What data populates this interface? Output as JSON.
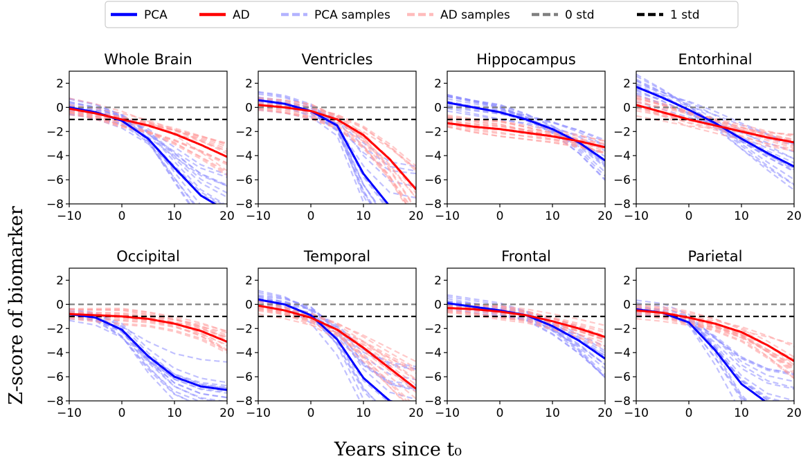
{
  "figure": {
    "ylabel": "Z-score of biomarker",
    "xlabel": "Years since t₀"
  },
  "legend": {
    "placement": "top-center",
    "entries": [
      {
        "label": "PCA",
        "color": "#0000ff",
        "style": "solid"
      },
      {
        "label": "AD",
        "color": "#ff0000",
        "style": "solid"
      },
      {
        "label": "PCA samples",
        "color": "#b3b3ff",
        "style": "dashed"
      },
      {
        "label": "AD samples",
        "color": "#ffbcbc",
        "style": "dashed"
      },
      {
        "label": "0 std",
        "color": "#808080",
        "style": "dashed"
      },
      {
        "label": "1 std",
        "color": "#000000",
        "style": "dashed"
      }
    ]
  },
  "chart_data": [
    {
      "type": "line",
      "title": "Whole Brain",
      "xlim": [
        -10,
        20
      ],
      "ylim": [
        -8,
        3
      ],
      "xticks": [
        -10,
        0,
        10,
        20
      ],
      "yticks": [
        2,
        0,
        -2,
        -4,
        -6,
        -8
      ],
      "x": [
        -10,
        -5,
        0,
        5,
        10,
        15,
        20
      ],
      "series": [
        {
          "name": "PCA",
          "values": [
            0.0,
            -0.4,
            -1.1,
            -2.6,
            -5.0,
            -7.3,
            -8.6
          ]
        },
        {
          "name": "AD",
          "values": [
            -0.1,
            -0.5,
            -1.0,
            -1.5,
            -2.2,
            -3.1,
            -4.1
          ]
        }
      ],
      "reference_lines": [
        {
          "name": "0 std",
          "y": 0
        },
        {
          "name": "1 std",
          "y": -1
        }
      ]
    },
    {
      "type": "line",
      "title": "Ventricles",
      "xlim": [
        -10,
        20
      ],
      "ylim": [
        -8,
        3
      ],
      "xticks": [
        -10,
        0,
        10,
        20
      ],
      "yticks": [
        2,
        0,
        -2,
        -4,
        -6,
        -8
      ],
      "x": [
        -10,
        -5,
        0,
        5,
        10,
        15,
        20
      ],
      "series": [
        {
          "name": "PCA",
          "values": [
            0.6,
            0.3,
            -0.3,
            -1.5,
            -5.5,
            -8.2,
            -8.8
          ]
        },
        {
          "name": "AD",
          "values": [
            0.2,
            0.0,
            -0.3,
            -1.0,
            -2.3,
            -4.3,
            -6.8
          ]
        }
      ],
      "reference_lines": [
        {
          "name": "0 std",
          "y": 0
        },
        {
          "name": "1 std",
          "y": -1
        }
      ]
    },
    {
      "type": "line",
      "title": "Hippocampus",
      "xlim": [
        -10,
        20
      ],
      "ylim": [
        -8,
        3
      ],
      "xticks": [
        -10,
        0,
        10,
        20
      ],
      "yticks": [
        2,
        0,
        -2,
        -4,
        -6,
        -8
      ],
      "x": [
        -10,
        -5,
        0,
        5,
        10,
        15,
        20
      ],
      "series": [
        {
          "name": "PCA",
          "values": [
            0.4,
            0.0,
            -0.4,
            -1.0,
            -1.8,
            -2.9,
            -4.4
          ]
        },
        {
          "name": "AD",
          "values": [
            -1.3,
            -1.6,
            -1.8,
            -2.1,
            -2.4,
            -2.8,
            -3.3
          ]
        }
      ],
      "reference_lines": [
        {
          "name": "0 std",
          "y": 0
        },
        {
          "name": "1 std",
          "y": -1
        }
      ]
    },
    {
      "type": "line",
      "title": "Entorhinal",
      "xlim": [
        -10,
        20
      ],
      "ylim": [
        -8,
        3
      ],
      "xticks": [
        -10,
        0,
        10,
        20
      ],
      "yticks": [
        2,
        0,
        -2,
        -4,
        -6,
        -8
      ],
      "x": [
        -10,
        -5,
        0,
        5,
        10,
        15,
        20
      ],
      "series": [
        {
          "name": "PCA",
          "values": [
            1.7,
            0.8,
            -0.2,
            -1.3,
            -2.6,
            -3.8,
            -4.9
          ]
        },
        {
          "name": "AD",
          "values": [
            0.2,
            -0.4,
            -1.0,
            -1.5,
            -2.0,
            -2.5,
            -2.9
          ]
        }
      ],
      "reference_lines": [
        {
          "name": "0 std",
          "y": 0
        },
        {
          "name": "1 std",
          "y": -1
        }
      ]
    },
    {
      "type": "line",
      "title": "Occipital",
      "xlim": [
        -10,
        20
      ],
      "ylim": [
        -8,
        3
      ],
      "xticks": [
        -10,
        0,
        10,
        20
      ],
      "yticks": [
        2,
        0,
        -2,
        -4,
        -6,
        -8
      ],
      "x": [
        -10,
        -5,
        0,
        5,
        10,
        15,
        20
      ],
      "series": [
        {
          "name": "PCA",
          "values": [
            -0.8,
            -1.1,
            -2.1,
            -4.3,
            -6.0,
            -6.8,
            -7.1
          ]
        },
        {
          "name": "AD",
          "values": [
            -0.8,
            -0.9,
            -1.0,
            -1.2,
            -1.6,
            -2.2,
            -3.1
          ]
        }
      ],
      "reference_lines": [
        {
          "name": "0 std",
          "y": 0
        },
        {
          "name": "1 std",
          "y": -1
        }
      ]
    },
    {
      "type": "line",
      "title": "Temporal",
      "xlim": [
        -10,
        20
      ],
      "ylim": [
        -8,
        3
      ],
      "xticks": [
        -10,
        0,
        10,
        20
      ],
      "yticks": [
        2,
        0,
        -2,
        -4,
        -6,
        -8
      ],
      "x": [
        -10,
        -5,
        0,
        5,
        10,
        15,
        20
      ],
      "series": [
        {
          "name": "PCA",
          "values": [
            0.4,
            0.0,
            -0.9,
            -2.9,
            -6.1,
            -8.0,
            -8.5
          ]
        },
        {
          "name": "AD",
          "values": [
            -0.1,
            -0.5,
            -1.1,
            -2.1,
            -3.6,
            -5.3,
            -7.0
          ]
        }
      ],
      "reference_lines": [
        {
          "name": "0 std",
          "y": 0
        },
        {
          "name": "1 std",
          "y": -1
        }
      ]
    },
    {
      "type": "line",
      "title": "Frontal",
      "xlim": [
        -10,
        20
      ],
      "ylim": [
        -8,
        3
      ],
      "xticks": [
        -10,
        0,
        10,
        20
      ],
      "yticks": [
        2,
        0,
        -2,
        -4,
        -6,
        -8
      ],
      "x": [
        -10,
        -5,
        0,
        5,
        10,
        15,
        20
      ],
      "series": [
        {
          "name": "PCA",
          "values": [
            0.1,
            -0.2,
            -0.5,
            -0.9,
            -1.8,
            -3.0,
            -4.5
          ]
        },
        {
          "name": "AD",
          "values": [
            -0.3,
            -0.4,
            -0.6,
            -0.9,
            -1.4,
            -2.0,
            -2.7
          ]
        }
      ],
      "reference_lines": [
        {
          "name": "0 std",
          "y": 0
        },
        {
          "name": "1 std",
          "y": -1
        }
      ]
    },
    {
      "type": "line",
      "title": "Parietal",
      "xlim": [
        -10,
        20
      ],
      "ylim": [
        -8,
        3
      ],
      "xticks": [
        -10,
        0,
        10,
        20
      ],
      "yticks": [
        2,
        0,
        -2,
        -4,
        -6,
        -8
      ],
      "x": [
        -10,
        -5,
        0,
        5,
        10,
        15,
        20
      ],
      "series": [
        {
          "name": "PCA",
          "values": [
            -0.4,
            -0.7,
            -1.5,
            -3.8,
            -6.6,
            -8.2,
            -8.8
          ]
        },
        {
          "name": "AD",
          "values": [
            -0.5,
            -0.7,
            -1.1,
            -1.6,
            -2.3,
            -3.4,
            -4.7
          ]
        }
      ],
      "reference_lines": [
        {
          "name": "0 std",
          "y": 0
        },
        {
          "name": "1 std",
          "y": -1
        }
      ]
    }
  ]
}
